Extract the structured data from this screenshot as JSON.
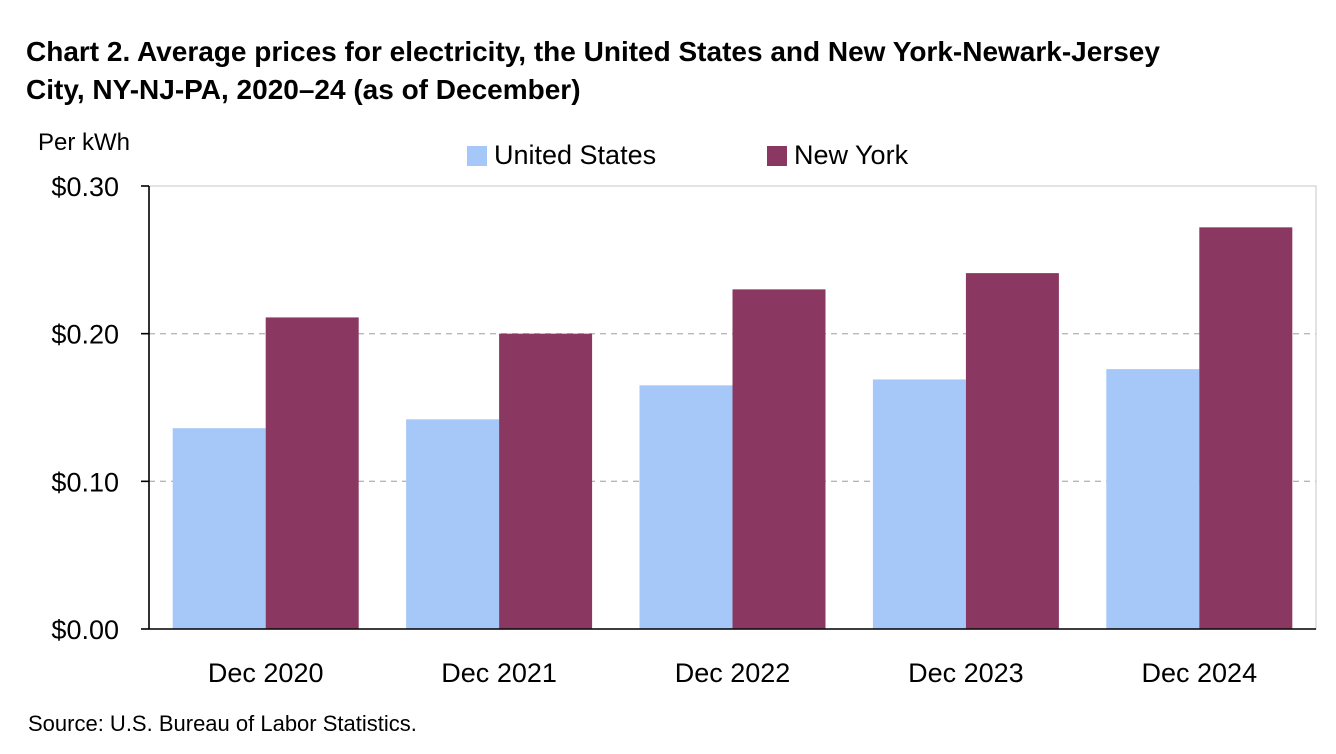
{
  "title": "Chart 2. Average prices for electricity, the United States and New York-Newark-Jersey City, NY-NJ-PA, 2020–24 (as of December)",
  "source": "Source: U.S. Bureau of Labor Statistics.",
  "chart_data": {
    "type": "bar",
    "title": "Chart 2. Average prices for electricity, the United States and New York-Newark-Jersey City, NY-NJ-PA, 2020–24 (as of December)",
    "xlabel": "",
    "ylabel": "Per kWh",
    "ylim": [
      0,
      0.3
    ],
    "yticks": [
      0,
      0.1,
      0.2,
      0.3
    ],
    "ytick_labels": [
      "$0.00",
      "$0.10",
      "$0.20",
      "$0.30"
    ],
    "gridlines": "dashed horizontal",
    "legend_position": "top",
    "categories": [
      "Dec 2020",
      "Dec 2021",
      "Dec 2022",
      "Dec 2023",
      "Dec 2024"
    ],
    "series": [
      {
        "name": "United States",
        "color": "#a6c8f8",
        "values": [
          0.136,
          0.142,
          0.165,
          0.169,
          0.176
        ]
      },
      {
        "name": "New York",
        "color": "#8a3861",
        "values": [
          0.211,
          0.2,
          0.23,
          0.241,
          0.272
        ]
      }
    ]
  }
}
